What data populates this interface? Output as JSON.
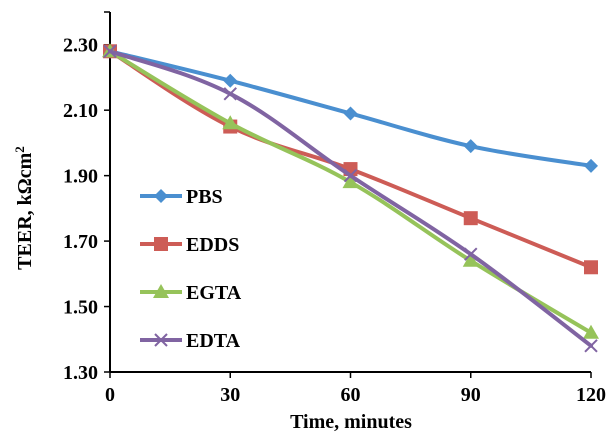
{
  "chart_data": {
    "type": "line",
    "title": "",
    "xlabel": "Time, minutes",
    "ylabel_main": "TEER, kΩcm",
    "ylabel_sup": "2",
    "x": [
      0,
      30,
      60,
      90,
      120
    ],
    "x_ticks": [
      "0",
      "30",
      "60",
      "90",
      "120"
    ],
    "xlim": [
      0,
      120
    ],
    "ylim": [
      1.3,
      2.4
    ],
    "y_ticks": [
      "1.30",
      "1.50",
      "1.70",
      "1.90",
      "2.10",
      "2.30"
    ],
    "grid": false,
    "legend_position": "left",
    "series": [
      {
        "name": "PBS",
        "values": [
          2.28,
          2.19,
          2.09,
          1.99,
          1.93
        ],
        "color": "#4a8fd0",
        "marker": "diamond"
      },
      {
        "name": "EDDS",
        "values": [
          2.28,
          2.05,
          1.92,
          1.77,
          1.62
        ],
        "color": "#cd5c56",
        "marker": "square"
      },
      {
        "name": "EGTA",
        "values": [
          2.28,
          2.06,
          1.88,
          1.64,
          1.42
        ],
        "color": "#96c35a",
        "marker": "triangle"
      },
      {
        "name": "EDTA",
        "values": [
          2.28,
          2.15,
          1.9,
          1.66,
          1.38
        ],
        "color": "#8064a2",
        "marker": "x"
      }
    ]
  }
}
